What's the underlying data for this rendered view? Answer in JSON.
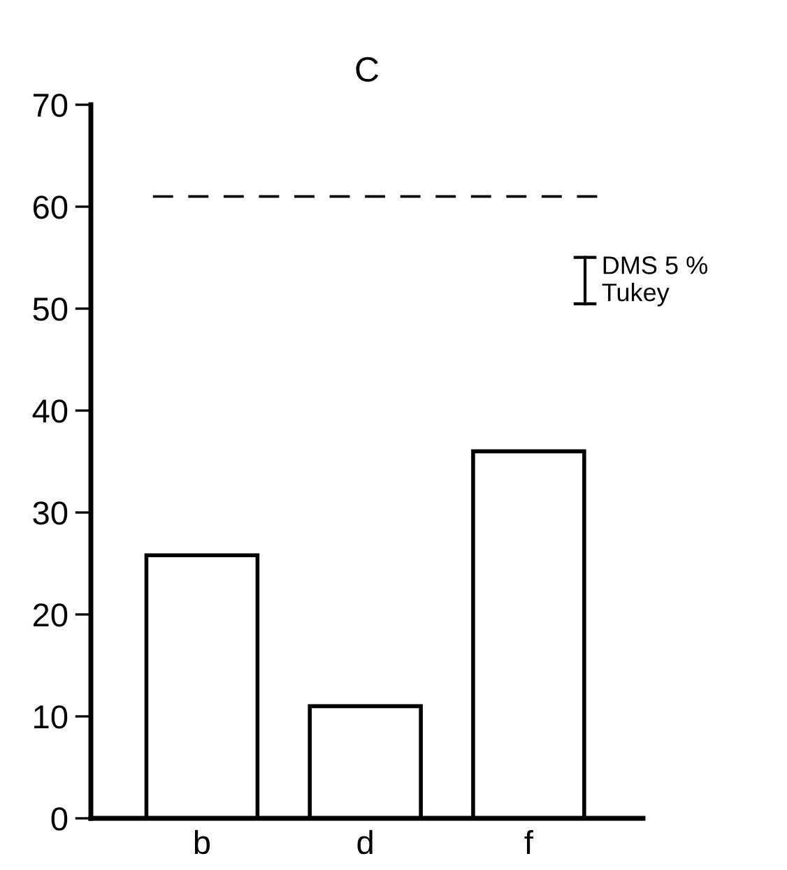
{
  "chart_data": {
    "type": "bar",
    "title": "C",
    "categories": [
      "b",
      "d",
      "f"
    ],
    "values": [
      25.8,
      11,
      36
    ],
    "color": "#ffffff",
    "ylim": [
      0,
      70
    ],
    "yticks": [
      0,
      10,
      20,
      30,
      40,
      50,
      60,
      70
    ],
    "grid": false,
    "legend": false,
    "ref_lines": [
      {
        "axis": "y",
        "value": 61,
        "line_style": "dashed"
      }
    ],
    "annotations": [
      "DMS 5 %\nTukey"
    ]
  }
}
